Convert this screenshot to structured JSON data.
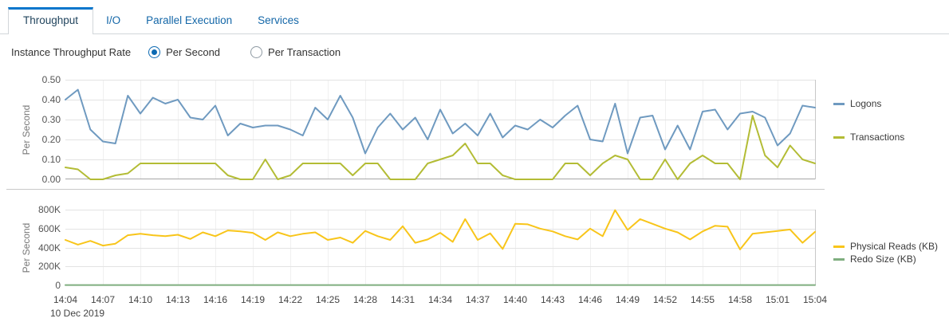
{
  "tabs": {
    "items": [
      {
        "label": "Throughput",
        "active": true
      },
      {
        "label": "I/O",
        "active": false
      },
      {
        "label": "Parallel Execution",
        "active": false
      },
      {
        "label": "Services",
        "active": false
      }
    ]
  },
  "controls": {
    "label": "Instance Throughput Rate",
    "radios": [
      {
        "label": "Per Second",
        "selected": true
      },
      {
        "label": "Per Transaction",
        "selected": false
      }
    ]
  },
  "colors": {
    "accent": "#0876cc",
    "logons": "#6f9ac0",
    "transactions": "#b3bc35",
    "physical_reads": "#f8c51a",
    "redo_size": "#7fae7f"
  },
  "chart_data": [
    {
      "type": "line",
      "title": "",
      "ylabel": "Per Second",
      "ylim": [
        0,
        0.5
      ],
      "grid": true,
      "legend_position": "right",
      "yticks": [
        {
          "label": "0.50",
          "value": 0.5
        },
        {
          "label": "0.40",
          "value": 0.4
        },
        {
          "label": "0.30",
          "value": 0.3
        },
        {
          "label": "0.20",
          "value": 0.2
        },
        {
          "label": "0.10",
          "value": 0.1
        },
        {
          "label": "0.00",
          "value": 0.0
        }
      ],
      "x_start": "14:04",
      "x_end": "15:04",
      "x_interval_minutes": 1,
      "series": [
        {
          "name": "Logons",
          "color": "#6f9ac0",
          "values": [
            0.4,
            0.45,
            0.25,
            0.19,
            0.18,
            0.42,
            0.33,
            0.41,
            0.38,
            0.4,
            0.31,
            0.3,
            0.37,
            0.22,
            0.28,
            0.26,
            0.27,
            0.27,
            0.25,
            0.22,
            0.36,
            0.3,
            0.42,
            0.31,
            0.13,
            0.26,
            0.33,
            0.25,
            0.31,
            0.2,
            0.35,
            0.23,
            0.28,
            0.22,
            0.33,
            0.21,
            0.27,
            0.25,
            0.3,
            0.26,
            0.32,
            0.37,
            0.2,
            0.19,
            0.38,
            0.13,
            0.31,
            0.32,
            0.15,
            0.27,
            0.15,
            0.34,
            0.35,
            0.25,
            0.33,
            0.34,
            0.31,
            0.17,
            0.23,
            0.37,
            0.36
          ]
        },
        {
          "name": "Transactions",
          "color": "#b3bc35",
          "values": [
            0.06,
            0.05,
            0.0,
            0.0,
            0.02,
            0.03,
            0.08,
            0.08,
            0.08,
            0.08,
            0.08,
            0.08,
            0.08,
            0.02,
            0.0,
            0.0,
            0.1,
            0.0,
            0.02,
            0.08,
            0.08,
            0.08,
            0.08,
            0.02,
            0.08,
            0.08,
            0.0,
            0.0,
            0.0,
            0.08,
            0.1,
            0.12,
            0.18,
            0.08,
            0.08,
            0.02,
            0.0,
            0.0,
            0.0,
            0.0,
            0.08,
            0.08,
            0.02,
            0.08,
            0.12,
            0.1,
            0.0,
            0.0,
            0.1,
            0.0,
            0.08,
            0.12,
            0.08,
            0.08,
            0.0,
            0.32,
            0.12,
            0.06,
            0.17,
            0.1,
            0.08
          ]
        }
      ]
    },
    {
      "type": "line",
      "title": "",
      "ylabel": "Per Second",
      "ylim": [
        0,
        800000
      ],
      "grid": true,
      "legend_position": "right",
      "yticks": [
        {
          "label": "800K",
          "value": 800000
        },
        {
          "label": "600K",
          "value": 600000
        },
        {
          "label": "400K",
          "value": 400000
        },
        {
          "label": "200K",
          "value": 200000
        },
        {
          "label": "0",
          "value": 0
        }
      ],
      "xticklabels": [
        "14:04",
        "14:07",
        "14:10",
        "14:13",
        "14:16",
        "14:19",
        "14:22",
        "14:25",
        "14:28",
        "14:31",
        "14:34",
        "14:37",
        "14:40",
        "14:43",
        "14:46",
        "14:49",
        "14:52",
        "14:55",
        "14:58",
        "15:01",
        "15:04"
      ],
      "x_date_label": "10 Dec 2019",
      "series": [
        {
          "name": "Physical Reads (KB)",
          "color": "#f8c51a",
          "values": [
            480000,
            430000,
            470000,
            420000,
            440000,
            530000,
            545000,
            530000,
            520000,
            535000,
            490000,
            560000,
            520000,
            580000,
            570000,
            555000,
            480000,
            560000,
            520000,
            545000,
            560000,
            480000,
            505000,
            450000,
            575000,
            520000,
            480000,
            625000,
            450000,
            485000,
            555000,
            460000,
            700000,
            480000,
            550000,
            385000,
            650000,
            645000,
            600000,
            570000,
            520000,
            485000,
            600000,
            520000,
            795000,
            585000,
            700000,
            650000,
            600000,
            560000,
            485000,
            570000,
            630000,
            620000,
            380000,
            545000,
            560000,
            575000,
            590000,
            450000,
            565000
          ]
        },
        {
          "name": "Redo Size (KB)",
          "color": "#7fae7f",
          "values": [
            3000,
            3000,
            3000,
            3000,
            3000,
            3000,
            3000,
            3000,
            3000,
            3000,
            3000,
            3000,
            3000,
            3000,
            3000,
            3000,
            3000,
            3000,
            3000,
            3000,
            3000,
            3000,
            3000,
            3000,
            3000,
            3000,
            3000,
            3000,
            3000,
            3000,
            3000,
            3000,
            3000,
            3000,
            3000,
            3000,
            3000,
            3000,
            3000,
            3000,
            3000,
            3000,
            3000,
            3000,
            3000,
            3000,
            3000,
            3000,
            3000,
            3000,
            3000,
            3000,
            3000,
            3000,
            3000,
            3000,
            3000,
            3000,
            3000,
            3000,
            3000
          ]
        }
      ]
    }
  ]
}
